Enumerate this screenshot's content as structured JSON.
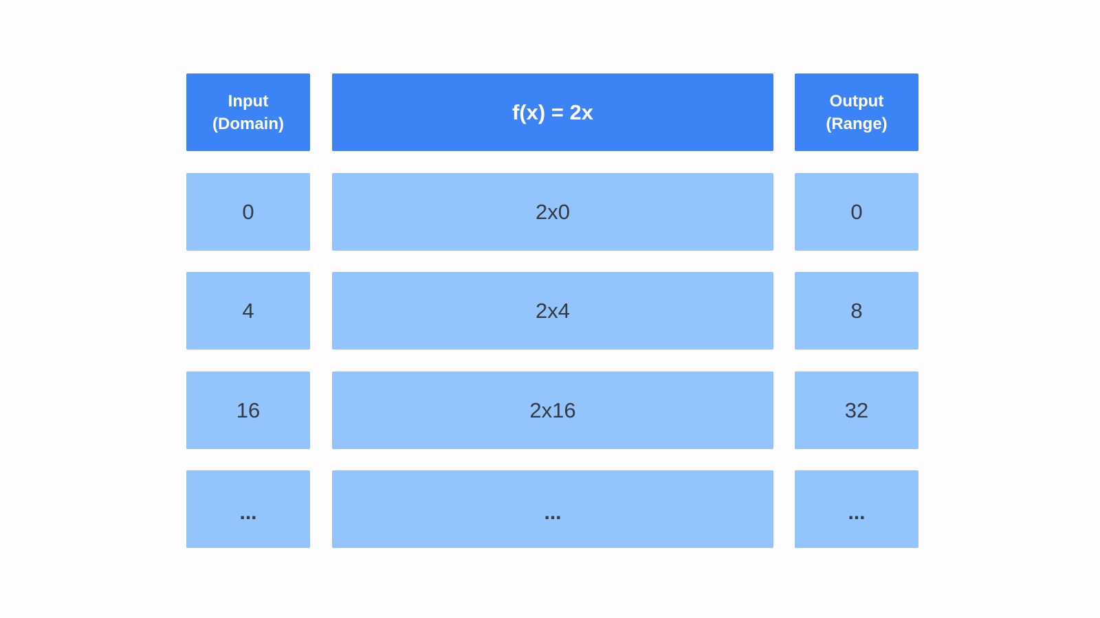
{
  "headers": {
    "input": "Input\n(Domain)",
    "function": "f(x) = 2x",
    "output": "Output\n(Range)"
  },
  "rows": [
    {
      "input": "0",
      "expression": "2x0",
      "output": "0"
    },
    {
      "input": "4",
      "expression": "2x4",
      "output": "8"
    },
    {
      "input": "16",
      "expression": "2x16",
      "output": "32"
    },
    {
      "input": "...",
      "expression": "...",
      "output": "..."
    }
  ],
  "colors": {
    "header_fill": "#3c83f5",
    "cell_fill": "#93c4fb",
    "header_text": "#ffffff",
    "cell_text": "#333a44"
  }
}
